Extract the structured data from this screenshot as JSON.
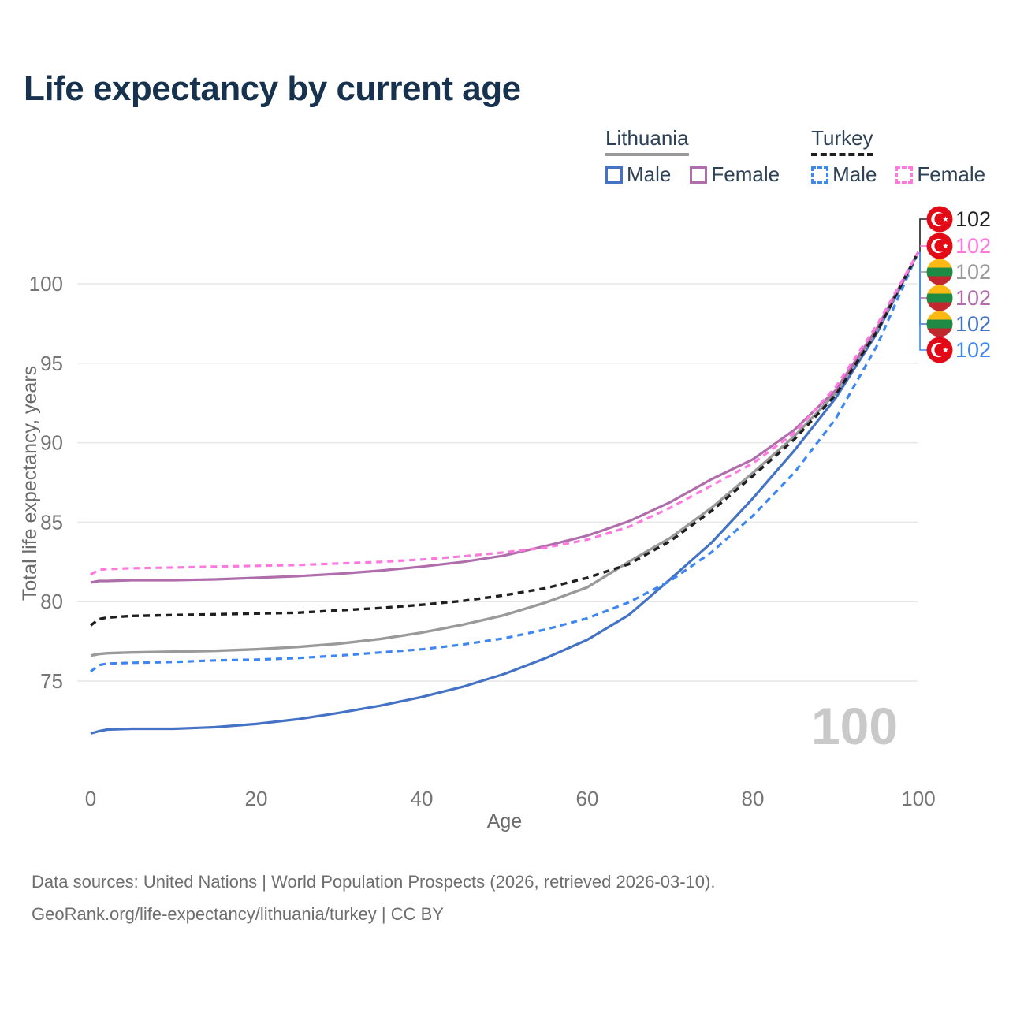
{
  "title": "Life expectancy by current age",
  "watermark_age": "100",
  "legend": {
    "groups": [
      {
        "name": "Lithuania",
        "line_style": "solid",
        "line_color": "#9a9a9a",
        "items": [
          {
            "label": "Male",
            "swatch_color": "#4472c4",
            "swatch_style": "solid"
          },
          {
            "label": "Female",
            "swatch_color": "#b06dab",
            "swatch_style": "solid"
          }
        ]
      },
      {
        "name": "Turkey",
        "line_style": "dashed",
        "line_color": "#1f1f1f",
        "items": [
          {
            "label": "Male",
            "swatch_color": "#3f87f0",
            "swatch_style": "dashed"
          },
          {
            "label": "Female",
            "swatch_color": "#ff78e0",
            "swatch_style": "dashed"
          }
        ]
      }
    ]
  },
  "chart_data": {
    "type": "line",
    "title": "Life expectancy by current age",
    "xlabel": "Age",
    "ylabel": "Total life expectancy, years",
    "xlim": [
      0,
      100
    ],
    "ylim": [
      71,
      103
    ],
    "xticks": [
      0,
      20,
      40,
      60,
      80,
      100
    ],
    "yticks": [
      75,
      80,
      85,
      90,
      95,
      100
    ],
    "grid": "horizontal",
    "legend_position": "top-right",
    "x": [
      0,
      1,
      2,
      5,
      10,
      15,
      20,
      25,
      30,
      35,
      40,
      45,
      50,
      55,
      60,
      65,
      70,
      75,
      80,
      85,
      90,
      95,
      100
    ],
    "series": [
      {
        "name": "Lithuania Male",
        "country": "Lithuania",
        "group": "Male",
        "color": "#4472c4",
        "dashed": false,
        "width": 3.2,
        "flag": "lithuania",
        "end_label": "102",
        "label_slot": 4,
        "values": [
          71.7,
          71.85,
          71.95,
          72.0,
          72.0,
          72.1,
          72.3,
          72.6,
          73.0,
          73.45,
          74.0,
          74.65,
          75.45,
          76.45,
          77.6,
          79.15,
          81.4,
          83.7,
          86.5,
          89.5,
          92.8,
          96.9,
          102
        ]
      },
      {
        "name": "Lithuania Overall",
        "country": "Lithuania",
        "group": "Overall",
        "color": "#9a9a9a",
        "dashed": false,
        "width": 3.4,
        "flag": "lithuania",
        "end_label": "102",
        "label_slot": 2,
        "values": [
          76.6,
          76.7,
          76.75,
          76.8,
          76.85,
          76.9,
          77.0,
          77.15,
          77.35,
          77.65,
          78.05,
          78.55,
          79.15,
          79.95,
          80.9,
          82.5,
          84.0,
          85.9,
          88.1,
          90.4,
          93.1,
          97.1,
          102
        ]
      },
      {
        "name": "Lithuania Female",
        "country": "Lithuania",
        "group": "Female",
        "color": "#b06dab",
        "dashed": false,
        "width": 3.2,
        "flag": "lithuania",
        "end_label": "102",
        "label_slot": 3,
        "values": [
          81.2,
          81.3,
          81.3,
          81.35,
          81.35,
          81.4,
          81.5,
          81.6,
          81.75,
          81.95,
          82.2,
          82.5,
          82.9,
          83.5,
          84.15,
          85.05,
          86.25,
          87.7,
          88.95,
          90.8,
          93.3,
          97.2,
          102
        ]
      },
      {
        "name": "Turkey Male",
        "country": "Turkey",
        "group": "Male",
        "color": "#3f87f0",
        "dashed": true,
        "width": 3.2,
        "flag": "turkey",
        "end_label": "102",
        "label_slot": 5,
        "values": [
          75.6,
          76.0,
          76.1,
          76.15,
          76.2,
          76.3,
          76.35,
          76.45,
          76.6,
          76.8,
          77.0,
          77.3,
          77.7,
          78.25,
          78.95,
          79.95,
          81.3,
          83.1,
          85.4,
          88.1,
          91.5,
          96.1,
          102
        ]
      },
      {
        "name": "Turkey Overall",
        "country": "Turkey",
        "group": "Overall",
        "color": "#1f1f1f",
        "dashed": true,
        "width": 3.4,
        "flag": "turkey",
        "end_label": "102",
        "label_slot": 0,
        "values": [
          78.5,
          78.9,
          79.0,
          79.1,
          79.15,
          79.2,
          79.25,
          79.3,
          79.45,
          79.6,
          79.8,
          80.05,
          80.4,
          80.85,
          81.5,
          82.35,
          83.8,
          85.7,
          87.9,
          90.2,
          93.0,
          97.0,
          102
        ]
      },
      {
        "name": "Turkey Female",
        "country": "Turkey",
        "group": "Female",
        "color": "#ff78e0",
        "dashed": true,
        "width": 3.2,
        "flag": "turkey",
        "end_label": "102",
        "label_slot": 1,
        "values": [
          81.7,
          82.0,
          82.05,
          82.1,
          82.15,
          82.2,
          82.25,
          82.3,
          82.4,
          82.5,
          82.65,
          82.85,
          83.1,
          83.4,
          83.9,
          84.7,
          85.9,
          87.3,
          88.7,
          90.6,
          93.5,
          97.4,
          102
        ]
      }
    ],
    "colors": {
      "title": "#17324f",
      "tick_label": "#757575",
      "axis_title": "#6b6b6b",
      "gridline": "#e7e7e7",
      "watermark": "#c9c9c9",
      "flag_turkey_red": "#e30a17",
      "flag_lithuania_yellow": "#fdb913",
      "flag_lithuania_green": "#1f8a44",
      "flag_lithuania_red": "#c1272d"
    }
  },
  "footer": {
    "line1": "Data sources: United Nations | World Population Prospects (2026, retrieved 2026-03-10).",
    "line2": "GeoRank.org/life-expectancy/lithuania/turkey | CC BY"
  }
}
